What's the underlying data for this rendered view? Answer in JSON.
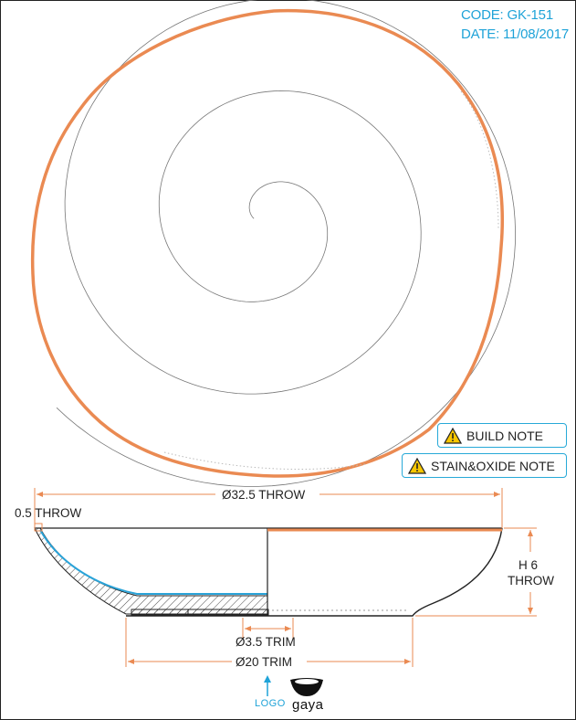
{
  "header": {
    "code": "CODE: GK-151",
    "date": "DATE: 11/08/2017"
  },
  "notes": {
    "build": "BUILD NOTE",
    "stain_oxide": "STAIN&OXIDE NOTE"
  },
  "dimensions": {
    "outer_diameter": "Ø32.5 THROW",
    "wall": "0.5 THROW",
    "height_value": "H 6",
    "height_unit": "THROW",
    "foot_inner": "Ø3.5 TRIM",
    "foot_outer": "Ø20 TRIM"
  },
  "logo": {
    "label": "LOGO",
    "brand": "gaya"
  },
  "colors": {
    "rim": "#ea8a52",
    "accent": "#1fa3d8",
    "glaze": "#2aa3d8",
    "line": "#222222"
  },
  "icons": {
    "warning": "warning-triangle-icon",
    "arrow": "arrow-up-icon",
    "brand_mark": "bowl-logo-icon"
  }
}
